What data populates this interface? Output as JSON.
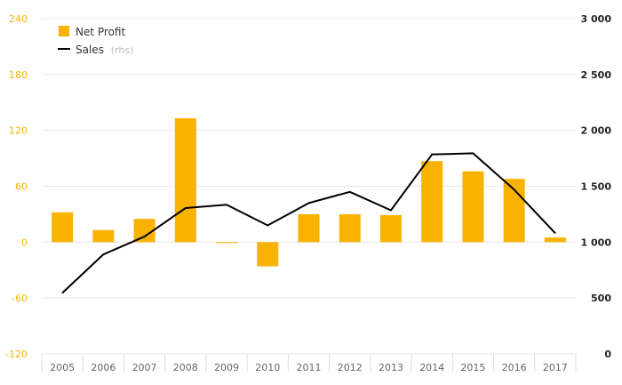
{
  "chart_data": {
    "type": "bar",
    "categories": [
      "2005",
      "2006",
      "2007",
      "2008",
      "2009",
      "2010",
      "2011",
      "2012",
      "2013",
      "2014",
      "2015",
      "2016",
      "2017"
    ],
    "series": [
      {
        "name": "Net Profit",
        "type": "bar",
        "axis": "left",
        "color": "#f9b200",
        "values": [
          32,
          13,
          25,
          133,
          -1,
          -26,
          30,
          30,
          29,
          87,
          76,
          68,
          5
        ]
      },
      {
        "name": "Sales",
        "type": "line",
        "axis": "right",
        "color": "#000000",
        "values": [
          545,
          890,
          1050,
          1305,
          1335,
          1150,
          1350,
          1450,
          1285,
          1785,
          1795,
          1470,
          1080
        ]
      }
    ],
    "yleft": {
      "ylim": [
        -120,
        240
      ],
      "ticks": [
        -120,
        -60,
        0,
        60,
        120,
        180,
        240
      ],
      "tick_labels": [
        "-120",
        "-60",
        "0",
        "60",
        "120",
        "180",
        "240"
      ],
      "color": "#f5b400"
    },
    "yright": {
      "ylim": [
        0,
        3000
      ],
      "ticks": [
        0,
        500,
        1000,
        1500,
        2000,
        2500,
        3000
      ],
      "tick_labels": [
        "0",
        "500",
        "1 000",
        "1 500",
        "2 000",
        "2 500",
        "3 000"
      ],
      "color": "#222222"
    },
    "legend": {
      "placement": "top-left",
      "items": [
        {
          "label": "Net Profit",
          "suffix": ""
        },
        {
          "label": "Sales",
          "suffix": "(rhs)"
        }
      ]
    },
    "grid": true,
    "title": "",
    "xlabel": "",
    "ylabel": ""
  }
}
